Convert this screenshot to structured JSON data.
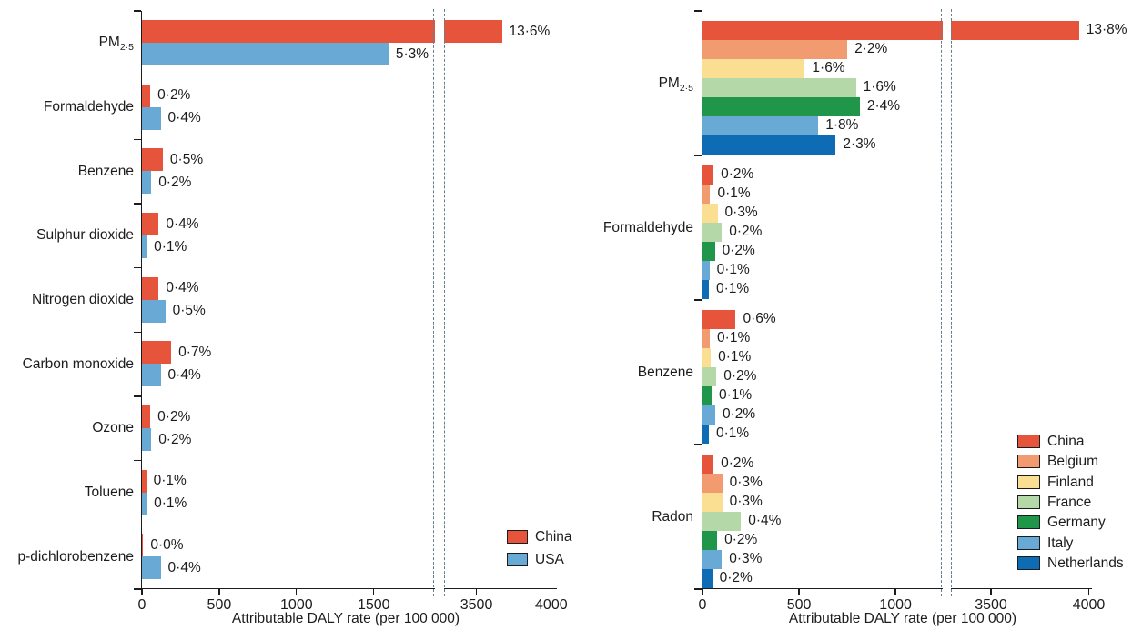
{
  "figure": {
    "background": "#ffffff",
    "text_color": "#1c1c1c",
    "axis_color": "#1c1c1c",
    "break_line_color": "#64808d"
  },
  "chart_data": [
    {
      "type": "bar",
      "orientation": "horizontal",
      "panel": "left",
      "title": "",
      "xlabel": "Attributable DALY rate (per 100 000)",
      "ylabel": "",
      "xlim": [
        0,
        4090
      ],
      "grid": false,
      "x_ticks": [
        0,
        500,
        1000,
        1500,
        3500,
        4000
      ],
      "x_tick_labels": [
        "0",
        "500",
        "1000",
        "1500",
        "3500",
        "4000"
      ],
      "axis_break": {
        "between_values": [
          1890,
          3290
        ]
      },
      "categories": [
        {
          "label": "PM",
          "sub": "2·5"
        },
        {
          "label": "Formaldehyde"
        },
        {
          "label": "Benzene"
        },
        {
          "label": "Sulphur dioxide"
        },
        {
          "label": "Nitrogen dioxide"
        },
        {
          "label": "Carbon monoxide"
        },
        {
          "label": "Ozone"
        },
        {
          "label": "Toluene"
        },
        {
          "label": "p-dichlorobenzene"
        }
      ],
      "series": [
        {
          "name": "China",
          "color": "#E7543C",
          "values": [
            3670,
            54,
            135,
            108,
            108,
            189,
            54,
            27,
            8
          ],
          "labels": [
            "13·6%",
            "0·2%",
            "0·5%",
            "0·4%",
            "0·4%",
            "0·7%",
            "0·2%",
            "0·1%",
            "0·0%"
          ]
        },
        {
          "name": "USA",
          "color": "#68A9D6",
          "values": [
            1595,
            121,
            60,
            30,
            151,
            121,
            60,
            30,
            121
          ],
          "labels": [
            "5·3%",
            "0·4%",
            "0·2%",
            "0·1%",
            "0·5%",
            "0·4%",
            "0·2%",
            "0·1%",
            "0·4%"
          ]
        }
      ],
      "legend": {
        "position": "bottom-right",
        "items": [
          "China",
          "USA"
        ]
      }
    },
    {
      "type": "bar",
      "orientation": "horizontal",
      "panel": "right",
      "title": "",
      "xlabel": "Attributable DALY rate (per 100 000)",
      "ylabel": "",
      "xlim": [
        0,
        4090
      ],
      "grid": false,
      "x_ticks": [
        0,
        500,
        1000,
        3500,
        4000
      ],
      "x_tick_labels": [
        "0",
        "500",
        "1000",
        "3500",
        "4000"
      ],
      "axis_break": {
        "between_values": [
          1240,
          3300
        ]
      },
      "categories": [
        {
          "label": "PM",
          "sub": "2·5"
        },
        {
          "label": "Formaldehyde"
        },
        {
          "label": "Benzene"
        },
        {
          "label": "Radon"
        }
      ],
      "series": [
        {
          "name": "China",
          "color": "#E7543C",
          "values": [
            3950,
            57,
            172,
            57
          ],
          "labels": [
            "13·8%",
            "0·2%",
            "0·6%",
            "0·2%"
          ]
        },
        {
          "name": "Belgium",
          "color": "#F29A70",
          "values": [
            750,
            40,
            38,
            102
          ],
          "labels": [
            "2·2%",
            "0·1%",
            "0·1%",
            "0·3%"
          ]
        },
        {
          "name": "Finland",
          "color": "#FADF92",
          "values": [
            530,
            78,
            43,
            102
          ],
          "labels": [
            "1·6%",
            "0·3%",
            "0·1%",
            "0·3%"
          ]
        },
        {
          "name": "France",
          "color": "#B5D8A9",
          "values": [
            795,
            100,
            72,
            199
          ],
          "labels": [
            "1·6%",
            "0·2%",
            "0·2%",
            "0·4%"
          ]
        },
        {
          "name": "Germany",
          "color": "#1F9649",
          "values": [
            815,
            64,
            47,
            76
          ],
          "labels": [
            "2·4%",
            "0·2%",
            "0·1%",
            "0·2%"
          ]
        },
        {
          "name": "Italy",
          "color": "#68A9D6",
          "values": [
            600,
            36,
            66,
            100
          ],
          "labels": [
            "1·8%",
            "0·1%",
            "0·2%",
            "0·3%"
          ]
        },
        {
          "name": "Netherlands",
          "color": "#0E6CB5",
          "values": [
            690,
            33,
            33,
            50
          ],
          "labels": [
            "2·3%",
            "0·1%",
            "0·1%",
            "0·2%"
          ]
        }
      ],
      "legend": {
        "position": "right",
        "items": [
          "China",
          "Belgium",
          "Finland",
          "France",
          "Germany",
          "Italy",
          "Netherlands"
        ]
      }
    }
  ]
}
